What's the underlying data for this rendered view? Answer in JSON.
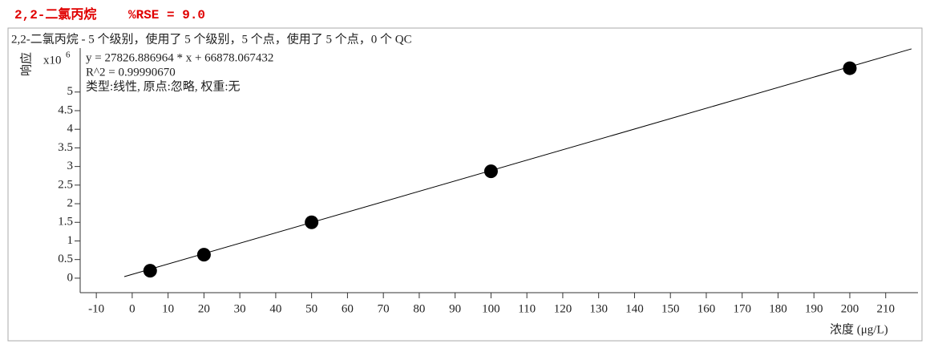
{
  "chart_data": {
    "type": "scatter",
    "header": "2,2-二氯丙烷",
    "header_note": "%RSE = 9.0",
    "title": "2,2-二氯丙烷 - 5 个级别，使用了 5 个级别，5 个点，使用了 5 个点，0 个 QC",
    "ylabel": "响应",
    "ylabel_multiplier": "x10",
    "ylabel_exponent": "6",
    "xlabel": "浓度 (μg/L)",
    "annotations": [
      "y = 27826.886964 * x  + 66878.067432",
      "R^2 = 0.99990670",
      "类型:线性, 原点:忽略, 权重:无"
    ],
    "x": [
      5,
      20,
      50,
      100,
      200
    ],
    "values": [
      0.2,
      0.63,
      1.5,
      2.87,
      5.64
    ],
    "color": "#000000",
    "fit_line": {
      "x": [
        -2.2,
        217.2
      ],
      "values": [
        0.04,
        6.16
      ],
      "color": "#000000"
    },
    "xlim": [
      -14.5,
      219
    ],
    "xticks": [
      -10,
      0,
      10,
      20,
      30,
      40,
      50,
      60,
      70,
      80,
      90,
      100,
      110,
      120,
      130,
      140,
      150,
      160,
      170,
      180,
      190,
      200,
      210
    ],
    "ylim": [
      -0.39,
      6.18
    ],
    "yticks": [
      0,
      0.5,
      1,
      1.5,
      2,
      2.5,
      3,
      3.5,
      4,
      4.5,
      5
    ]
  }
}
